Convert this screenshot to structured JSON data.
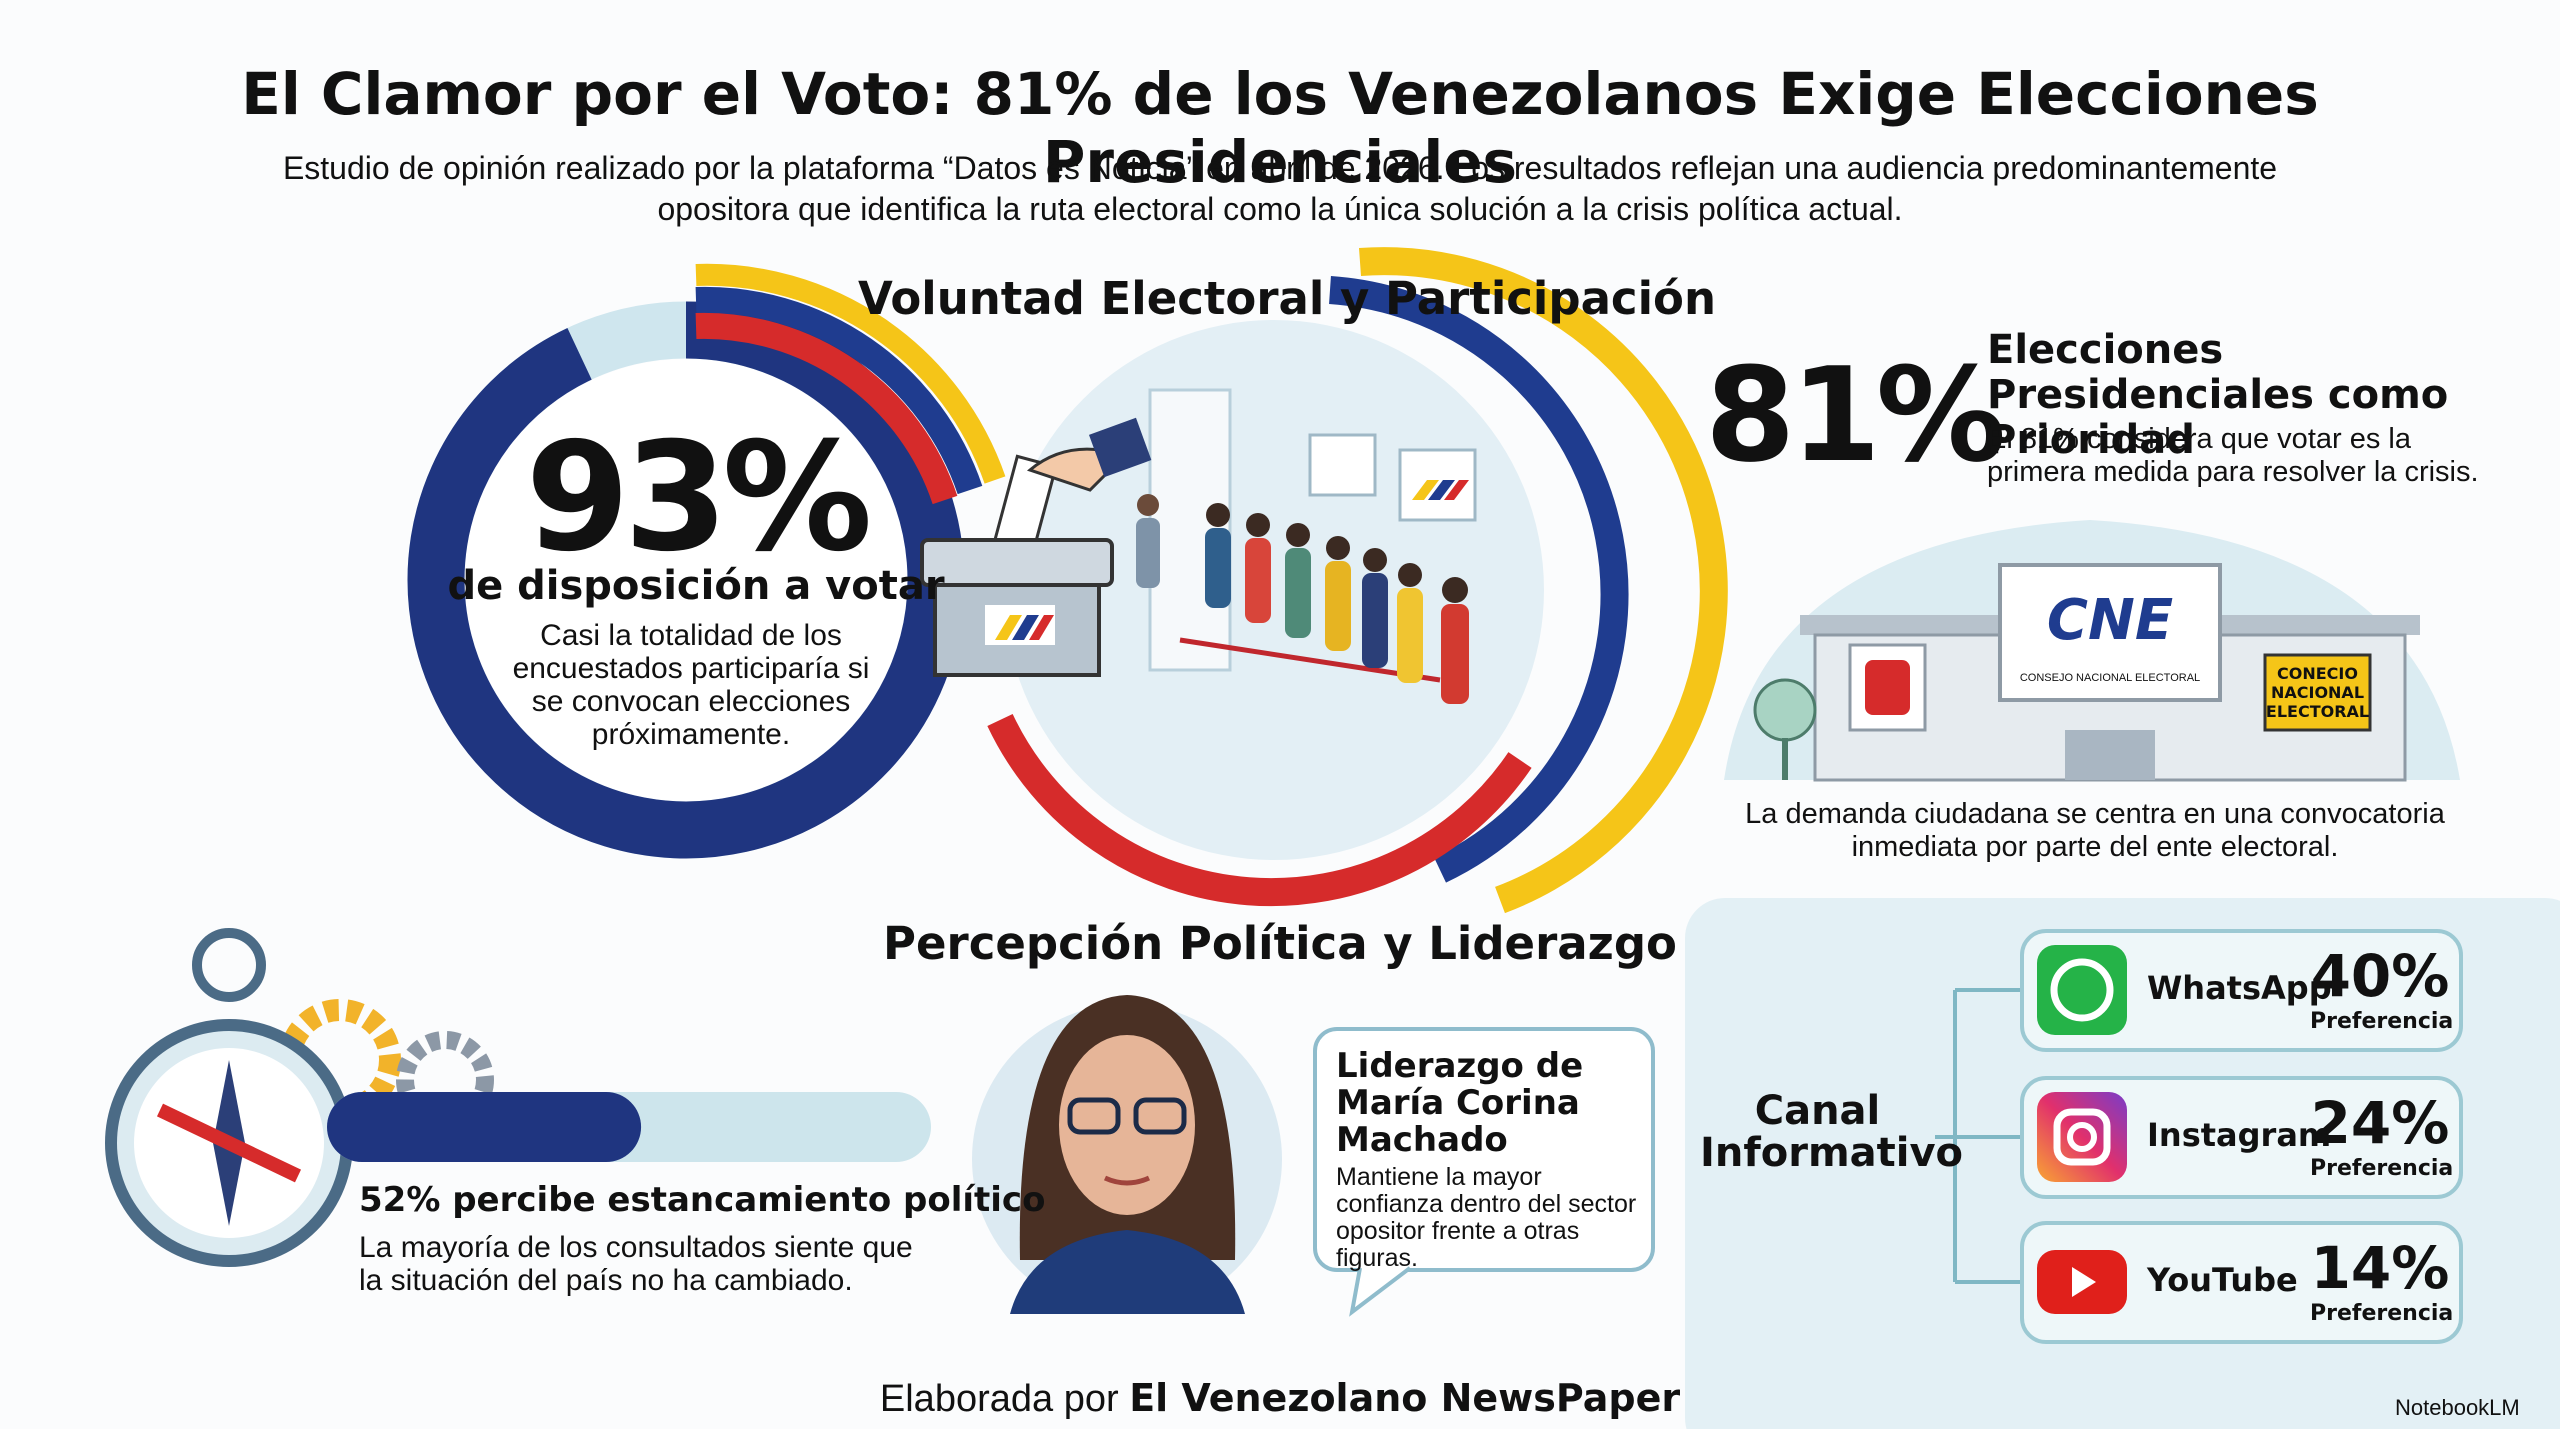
{
  "header": {
    "title": "El Clamor por el Voto: 81% de los Venezolanos Exige Elecciones Presidenciales",
    "subtitle": "Estudio de opinión realizado por la plataforma “Datos es Noticia” en abril de 2026. Los resultados reflejan una audiencia predominantemente opositora que identifica la ruta electoral como la única solución a la crisis política actual."
  },
  "participation": {
    "heading": "Voluntad Electoral y Participación",
    "stat": {
      "value": 93,
      "label": "93%"
    },
    "stat_caption": "de disposición a votar",
    "description": "Casi la totalidad de los encuestados participaría si se convocan elecciones próximamente."
  },
  "priority": {
    "stat": "81%",
    "title": "Elecciones Presidenciales como Prioridad",
    "description": "El 81% considera que votar es la primera medida para resolver la crisis.",
    "building_logo": "CNE",
    "building_caption": "CONSEJO NACIONAL ELECTORAL",
    "building_sign": "CONECIO NACIONAL ELECTORAL",
    "note": "La demanda ciudadana se centra en una convocatoria inmediata por parte del ente electoral."
  },
  "perception": {
    "heading": "Percepción Política y Liderazgo",
    "stagnation": {
      "value": 52,
      "text": "52% percibe estancamiento político",
      "description": "La mayoría de los consultados siente que la situación del país no ha cambiado."
    },
    "leader": {
      "title": "Liderazgo de María Corina Machado",
      "description": "Mantiene la mayor confianza dentro del sector opositor frente a otras figuras."
    }
  },
  "channels": {
    "heading": "Canal Informativo",
    "items": [
      {
        "name": "WhatsApp",
        "share": "40%",
        "caption": "Preferencia"
      },
      {
        "name": "Instagram",
        "share": "24%",
        "caption": "Preferencia"
      },
      {
        "name": "YouTube",
        "share": "14%",
        "caption": "Preferencia"
      }
    ]
  },
  "footer": {
    "prefix": "Elaborada por",
    "publisher": "El Venezolano NewsPaper"
  },
  "watermark": "NotebookLM"
}
